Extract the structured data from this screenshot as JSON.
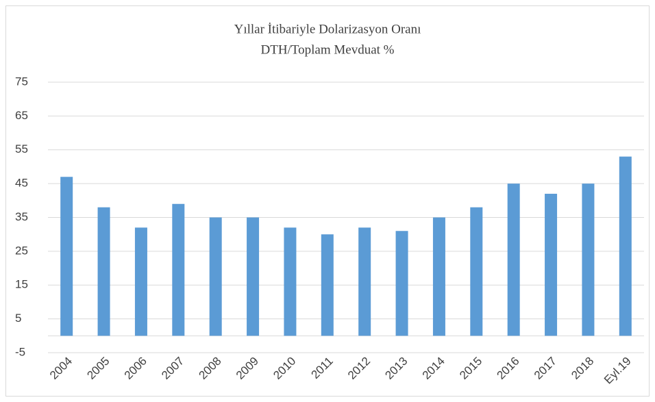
{
  "chart_data": {
    "type": "bar",
    "title": "Yıllar İtibariyle Dolarizasyon Oranı",
    "subtitle": "DTH/Toplam Mevduat %",
    "categories": [
      "2004",
      "2005",
      "2006",
      "2007",
      "2008",
      "2009",
      "2010",
      "2011",
      "2012",
      "2013",
      "2014",
      "2015",
      "2016",
      "2017",
      "2018",
      "Eyl.19"
    ],
    "values": [
      47,
      38,
      32,
      39,
      35,
      35,
      32,
      30,
      32,
      31,
      35,
      38,
      45,
      42,
      45,
      53
    ],
    "color": "#5b9bd5",
    "ylim": [
      -5,
      75
    ],
    "yticks": [
      -5,
      5,
      15,
      25,
      35,
      45,
      55,
      65,
      75
    ],
    "grid": true
  }
}
